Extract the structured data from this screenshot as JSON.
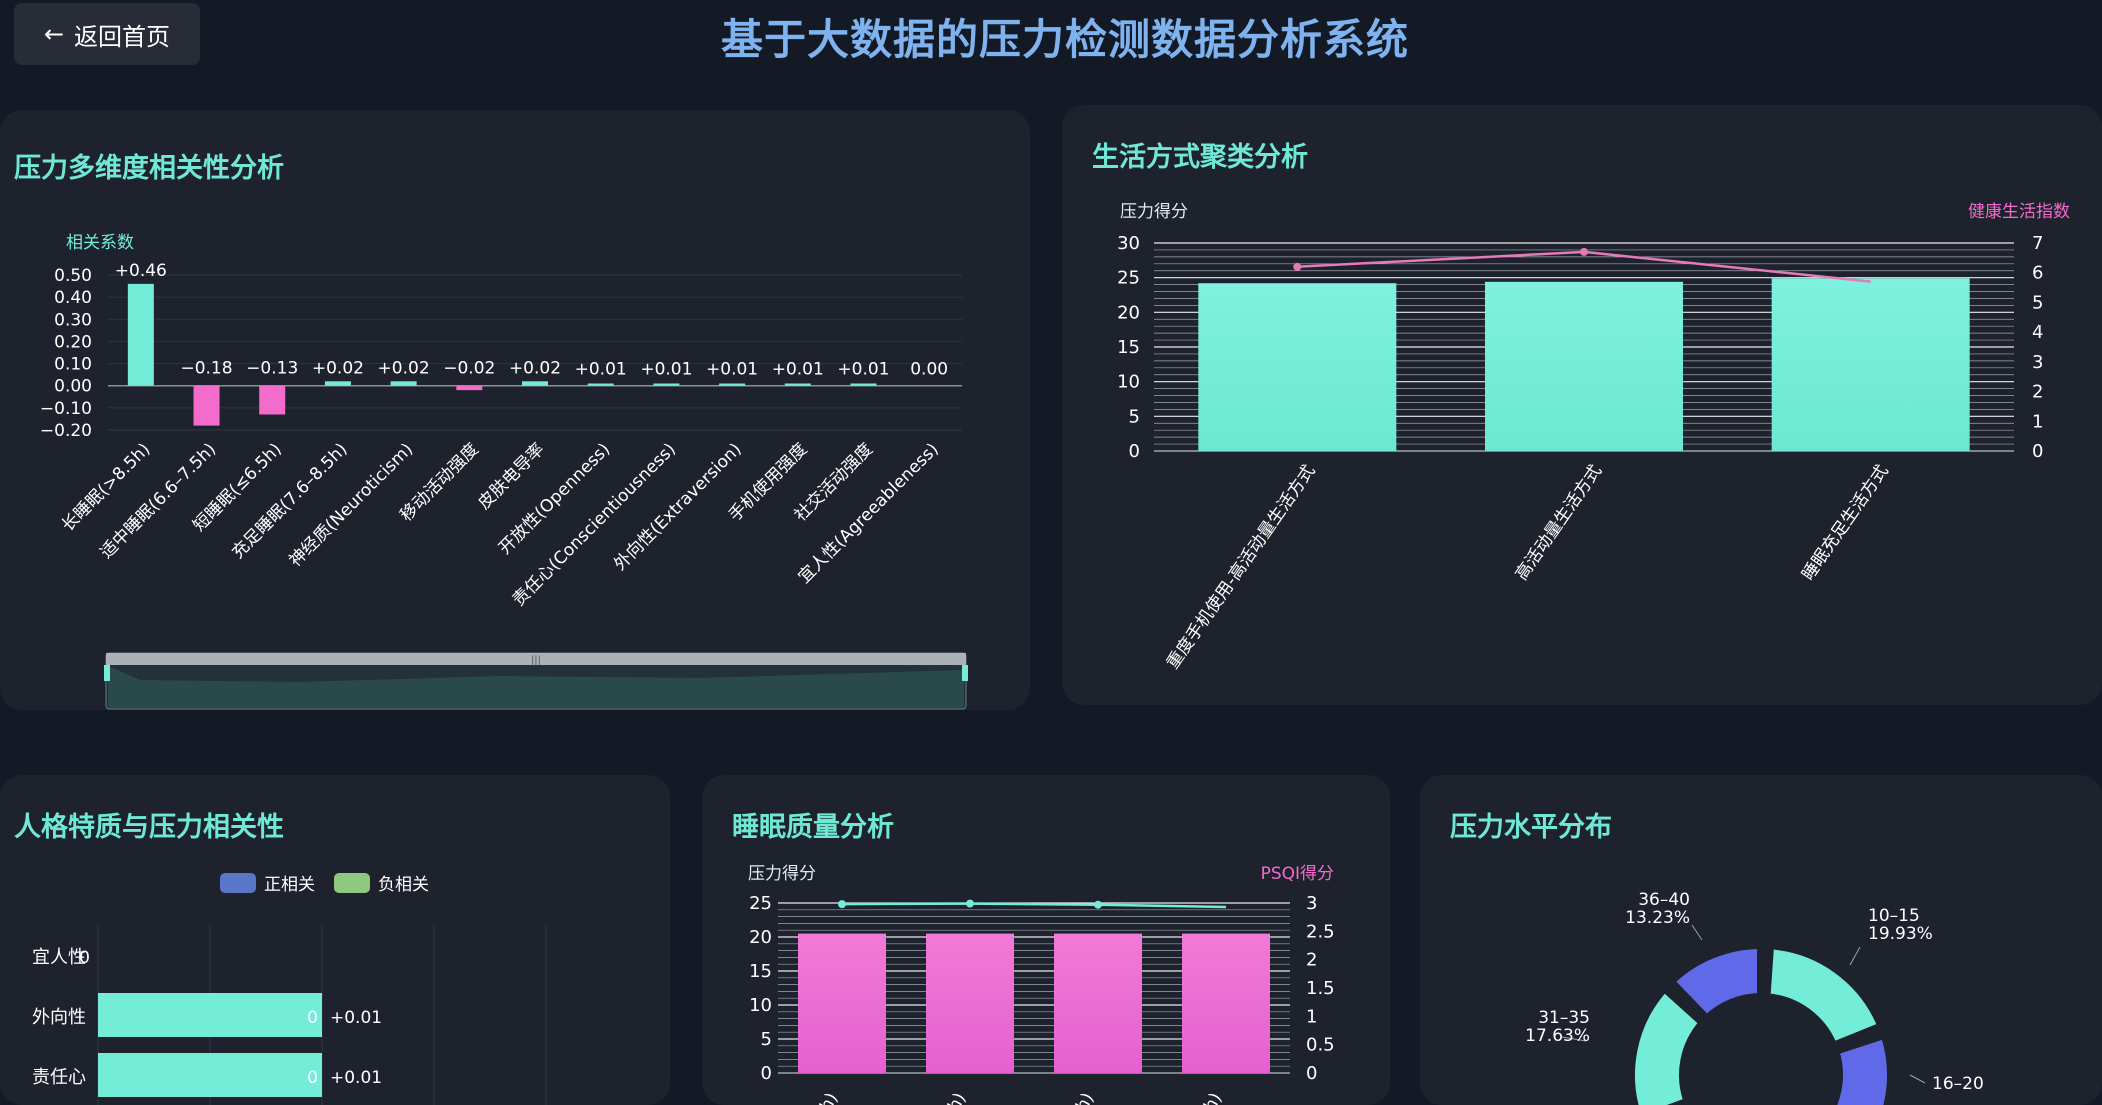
{
  "header": {
    "back_label": "返回首页",
    "back_icon": "arrow-left-icon",
    "title": "基于大数据的压力检测数据分析系统"
  },
  "colors": {
    "teal": "#73ecd8",
    "pink": "#f36ccc",
    "purple": "#6069e8",
    "green": "#8fc980",
    "blue": "#5a76c8",
    "title_teal": "#6fe8d6"
  },
  "panels": {
    "correlation": "压力多维度相关性分析",
    "lifestyle": "生活方式聚类分析",
    "personality": "人格特质与压力相关性",
    "sleep": "睡眠质量分析",
    "stress": "压力水平分布"
  },
  "chart_data": [
    {
      "type": "bar",
      "ylabel": "相关系数",
      "ylim": [
        -0.2,
        0.5
      ],
      "yticks": [
        "0.50",
        "0.40",
        "0.30",
        "0.20",
        "0.10",
        "0.00",
        "−0.10",
        "−0.20"
      ],
      "categories": [
        "长睡眠(>8.5h)",
        "适中睡眠(6.6–7.5h)",
        "短睡眠(≤6.5h)",
        "充足睡眠(7.6–8.5h)",
        "神经质(Neuroticism)",
        "移动活动强度",
        "皮肤电导率",
        "开放性(Openness)",
        "责任心(Conscientiousness)",
        "外向性(Extraversion)",
        "手机使用强度",
        "社交活动强度",
        "宜人性(Agreeableness)"
      ],
      "values": [
        0.46,
        -0.18,
        -0.13,
        0.02,
        0.02,
        -0.02,
        0.02,
        0.01,
        0.01,
        0.01,
        0.01,
        0.01,
        0.0
      ],
      "labels": [
        "+0.46",
        "−0.18",
        "−0.13",
        "+0.02",
        "+0.02",
        "−0.02",
        "+0.02",
        "+0.01",
        "+0.01",
        "+0.01",
        "+0.01",
        "+0.01",
        "0.00"
      ]
    },
    {
      "type": "bar",
      "ylabel": "压力得分",
      "y2label": "健康生活指数",
      "ylim": [
        0,
        30
      ],
      "y2lim": [
        0,
        7
      ],
      "yticks": [
        "30",
        "25",
        "20",
        "15",
        "10",
        "5",
        "0"
      ],
      "y2ticks": [
        "7",
        "6",
        "5",
        "4",
        "3",
        "2",
        "1",
        "0"
      ],
      "categories": [
        "重度手机使用-高活动量生活方式",
        "高活动量生活方式",
        "睡眠充足生活方式"
      ],
      "series": [
        {
          "type": "bar",
          "values": [
            24.2,
            24.4,
            24.9
          ]
        },
        {
          "type": "line",
          "values": [
            6.2,
            6.7,
            5.7
          ]
        }
      ]
    },
    {
      "type": "bar",
      "legend": [
        "正相关",
        "负相关"
      ],
      "categories": [
        "宜人性",
        "外向性",
        "责任心"
      ],
      "values": [
        0.0,
        0.01,
        0.01
      ],
      "bar_labels": [
        "0",
        "0",
        "0"
      ],
      "value_labels": [
        "",
        "+0.01",
        "+0.01"
      ]
    },
    {
      "type": "bar",
      "ylabel": "压力得分",
      "y2label": "PSQI得分",
      "ylim": [
        0,
        25
      ],
      "y2lim": [
        0,
        3
      ],
      "yticks": [
        "25",
        "20",
        "15",
        "10",
        "5",
        "0"
      ],
      "y2ticks": [
        "3",
        "2.5",
        "2",
        "1.5",
        "1",
        "0.5",
        "0"
      ],
      "categories": [
        "h)",
        "h)",
        "h)",
        "h)"
      ],
      "series": [
        {
          "type": "bar",
          "values": [
            20.5,
            20.5,
            20.5,
            20.5
          ]
        },
        {
          "type": "line",
          "values": [
            2.98,
            2.99,
            2.97,
            2.93
          ]
        }
      ]
    },
    {
      "type": "pie",
      "slices": [
        {
          "label": "10–15",
          "percent": "19.93%",
          "value": 19.93
        },
        {
          "label": "16–20",
          "percent": "",
          "value": 15
        },
        {
          "label": "31–35",
          "percent": "17.63%",
          "value": 17.63
        },
        {
          "label": "36–40",
          "percent": "13.23%",
          "value": 13.23
        }
      ]
    }
  ]
}
